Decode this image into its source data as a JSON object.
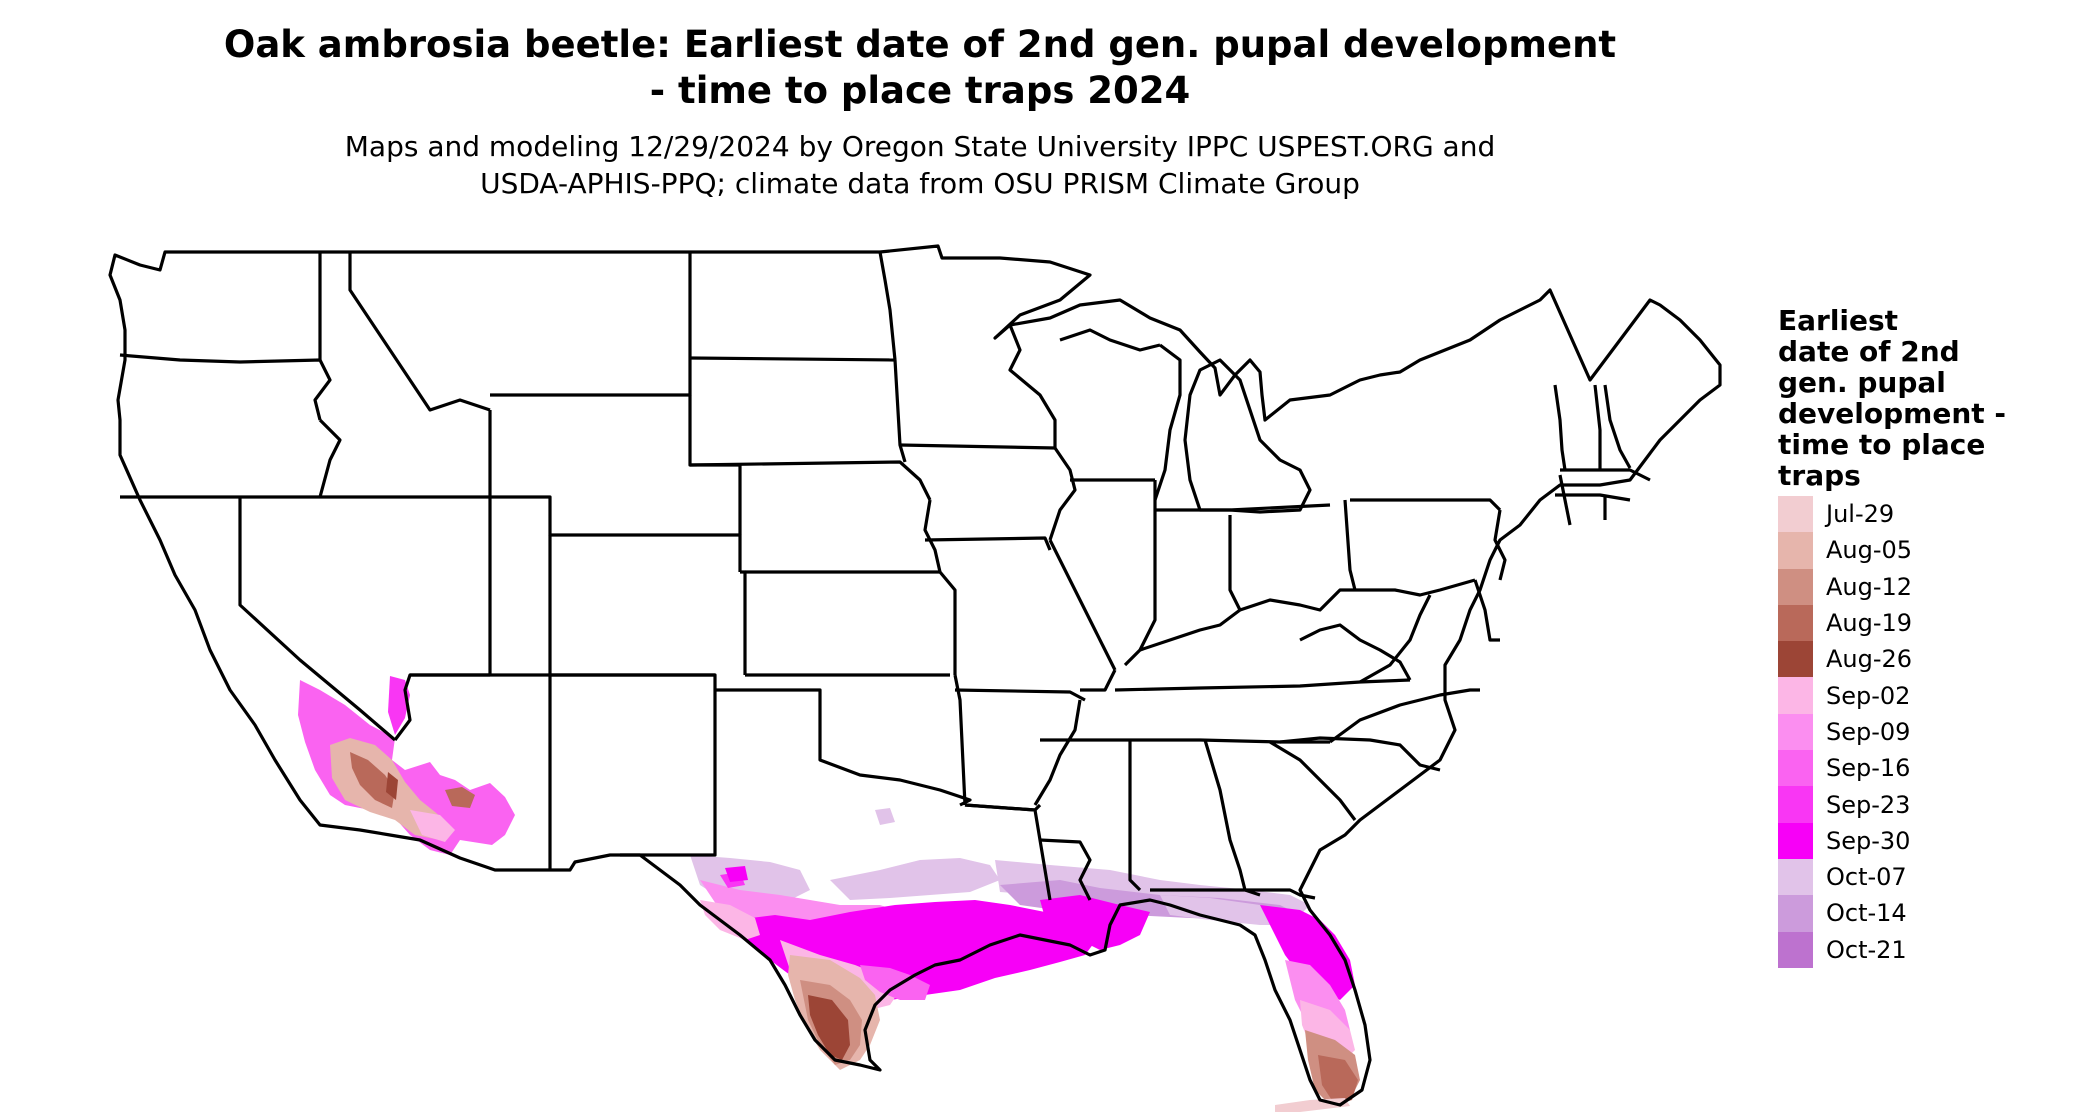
{
  "title": {
    "line1": "Oak ambrosia beetle: Earliest date of 2nd gen. pupal development",
    "line2": "- time to place traps 2024"
  },
  "subtitle": {
    "line1": "Maps and modeling 12/29/2024 by Oregon State University IPPC USPEST.ORG and",
    "line2": "USDA-APHIS-PPQ; climate data from OSU PRISM Climate Group"
  },
  "legend": {
    "title_lines": [
      "Earliest",
      "date of 2nd",
      "gen. pupal",
      "development -",
      "time to place",
      "traps"
    ],
    "items": [
      {
        "label": "Jul-29",
        "color": "#f2cdd1"
      },
      {
        "label": "Aug-05",
        "color": "#e6b5ac"
      },
      {
        "label": "Aug-12",
        "color": "#cf8f82"
      },
      {
        "label": "Aug-19",
        "color": "#b9695a"
      },
      {
        "label": "Aug-26",
        "color": "#9c4536"
      },
      {
        "label": "Sep-02",
        "color": "#fcb6e6"
      },
      {
        "label": "Sep-09",
        "color": "#fb8ef0"
      },
      {
        "label": "Sep-16",
        "color": "#fa63f1"
      },
      {
        "label": "Sep-23",
        "color": "#f936f4"
      },
      {
        "label": "Sep-30",
        "color": "#f700f7"
      },
      {
        "label": "Oct-07",
        "color": "#e1c3e9"
      },
      {
        "label": "Oct-14",
        "color": "#cc9bdc"
      },
      {
        "label": "Oct-21",
        "color": "#bd72cf"
      }
    ]
  },
  "map": {
    "region": "Contiguous United States",
    "states": [
      "WA",
      "OR",
      "CA",
      "ID",
      "NV",
      "UT",
      "AZ",
      "MT",
      "WY",
      "CO",
      "NM",
      "ND",
      "SD",
      "NE",
      "KS",
      "OK",
      "TX",
      "MN",
      "IA",
      "MO",
      "AR",
      "LA",
      "WI",
      "IL",
      "MS",
      "MI",
      "IN",
      "KY",
      "TN",
      "AL",
      "OH",
      "GA",
      "FL",
      "SC",
      "NC",
      "VA",
      "WV",
      "PA",
      "NY",
      "ME",
      "VT",
      "NH",
      "MA",
      "CT",
      "RI",
      "NJ",
      "DE",
      "MD"
    ]
  }
}
